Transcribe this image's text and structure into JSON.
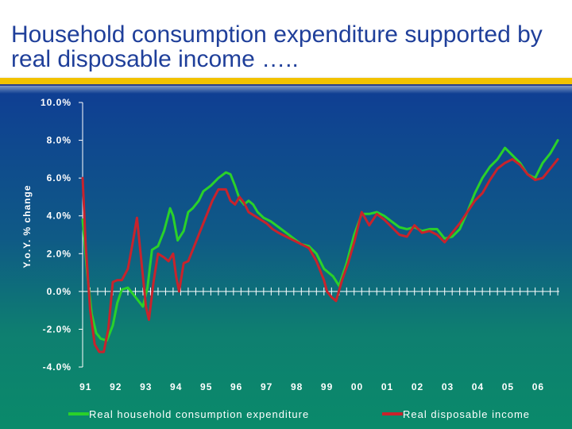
{
  "slide": {
    "title": "Household consumption expenditure supported by real disposable income …..",
    "accent_bar_color": "#f2c200"
  },
  "chart_data": {
    "type": "line",
    "ylabel": "Y.o.Y. % change",
    "xlabel": "",
    "ylim": [
      -4,
      10
    ],
    "xlim": [
      1991.0,
      2006.8
    ],
    "y_ticks": [
      10,
      8,
      6,
      4,
      2,
      0,
      -2,
      -4
    ],
    "y_tick_labels": [
      "10.0%",
      "8.0%",
      "6.0%",
      "4.0%",
      "2.0%",
      "0.0%",
      "-2.0%",
      "-4.0%"
    ],
    "x_tick_labels": [
      "91",
      "92",
      "93",
      "94",
      "95",
      "96",
      "97",
      "98",
      "99",
      "00",
      "01",
      "02",
      "03",
      "04",
      "05",
      "06"
    ],
    "x_tick_years": [
      1991,
      1992,
      1993,
      1994,
      1995,
      1996,
      1997,
      1998,
      1999,
      2000,
      2001,
      2002,
      2003,
      2004,
      2005,
      2006
    ],
    "legend": {
      "placement": "bottom"
    },
    "series": [
      {
        "name": "Real household consumption expenditure",
        "color": "#2ad12a",
        "x": [
          1991.0,
          1991.15,
          1991.3,
          1991.45,
          1991.6,
          1991.8,
          1992.0,
          1992.15,
          1992.3,
          1992.5,
          1992.75,
          1993.0,
          1993.15,
          1993.3,
          1993.5,
          1993.7,
          1993.9,
          1994.0,
          1994.15,
          1994.35,
          1994.5,
          1994.65,
          1994.85,
          1995.0,
          1995.25,
          1995.5,
          1995.75,
          1995.9,
          1996.05,
          1996.2,
          1996.35,
          1996.5,
          1996.65,
          1996.8,
          1997.0,
          1997.25,
          1997.5,
          1997.75,
          1998.0,
          1998.25,
          1998.5,
          1998.75,
          1999.0,
          1999.15,
          1999.3,
          1999.5,
          1999.75,
          2000.0,
          2000.25,
          2000.5,
          2000.75,
          2001.0,
          2001.25,
          2001.5,
          2001.75,
          2002.0,
          2002.25,
          2002.5,
          2002.75,
          2003.0,
          2003.25,
          2003.5,
          2003.75,
          2004.0,
          2004.25,
          2004.5,
          2004.75,
          2005.0,
          2005.25,
          2005.5,
          2005.75,
          2006.0,
          2006.25,
          2006.5,
          2006.75
        ],
        "values": [
          3.8,
          1.0,
          -1.2,
          -2.2,
          -2.5,
          -2.6,
          -1.8,
          -0.6,
          0.1,
          0.2,
          -0.3,
          -0.8,
          0.2,
          2.2,
          2.4,
          3.2,
          4.4,
          4.0,
          2.7,
          3.2,
          4.2,
          4.4,
          4.8,
          5.3,
          5.6,
          6.0,
          6.3,
          6.2,
          5.6,
          4.9,
          4.6,
          4.8,
          4.6,
          4.2,
          3.9,
          3.7,
          3.4,
          3.1,
          2.8,
          2.5,
          2.4,
          2.0,
          1.2,
          1.0,
          0.8,
          0.3,
          1.5,
          3.0,
          4.1,
          4.1,
          4.2,
          4.0,
          3.7,
          3.4,
          3.3,
          3.4,
          3.2,
          3.3,
          3.3,
          2.8,
          2.9,
          3.3,
          4.2,
          5.2,
          6.0,
          6.6,
          7.0,
          7.6,
          7.2,
          6.8,
          6.2,
          6.0,
          6.8,
          7.3,
          8.0
        ]
      },
      {
        "name": "Real disposable income",
        "color": "#c8232c",
        "x": [
          1991.0,
          1991.1,
          1991.25,
          1991.4,
          1991.55,
          1991.7,
          1991.85,
          1992.0,
          1992.15,
          1992.3,
          1992.5,
          1992.65,
          1992.8,
          1993.0,
          1993.1,
          1993.2,
          1993.35,
          1993.5,
          1993.7,
          1993.85,
          1994.0,
          1994.1,
          1994.2,
          1994.35,
          1994.5,
          1994.7,
          1994.9,
          1995.1,
          1995.3,
          1995.5,
          1995.75,
          1995.9,
          1996.05,
          1996.2,
          1996.35,
          1996.5,
          1996.7,
          1996.9,
          1997.1,
          1997.3,
          1997.5,
          1997.75,
          1998.0,
          1998.25,
          1998.5,
          1998.75,
          1999.0,
          1999.1,
          1999.25,
          1999.4,
          1999.6,
          1999.8,
          2000.0,
          2000.25,
          2000.5,
          2000.75,
          2001.0,
          2001.25,
          2001.5,
          2001.75,
          2002.0,
          2002.25,
          2002.5,
          2002.75,
          2003.0,
          2003.25,
          2003.5,
          2003.75,
          2004.0,
          2004.25,
          2004.5,
          2004.75,
          2005.0,
          2005.25,
          2005.5,
          2005.75,
          2006.0,
          2006.25,
          2006.5,
          2006.75
        ],
        "values": [
          6.0,
          2.5,
          -1.0,
          -2.8,
          -3.2,
          -3.2,
          -2.0,
          0.5,
          0.6,
          0.6,
          1.2,
          2.5,
          3.9,
          0.8,
          -0.8,
          -1.5,
          0.5,
          2.0,
          1.8,
          1.6,
          2.0,
          0.8,
          0.0,
          1.5,
          1.6,
          2.4,
          3.2,
          4.0,
          4.8,
          5.4,
          5.4,
          4.8,
          4.6,
          5.0,
          4.7,
          4.2,
          4.0,
          3.8,
          3.6,
          3.3,
          3.1,
          2.9,
          2.7,
          2.5,
          2.3,
          1.6,
          0.6,
          0.0,
          -0.3,
          -0.5,
          0.6,
          1.5,
          2.6,
          4.2,
          3.5,
          4.1,
          3.8,
          3.4,
          3.0,
          2.9,
          3.5,
          3.1,
          3.2,
          3.0,
          2.6,
          3.1,
          3.6,
          4.2,
          4.8,
          5.2,
          5.9,
          6.5,
          6.8,
          7.0,
          6.7,
          6.2,
          5.9,
          6.0,
          6.5,
          7.0
        ]
      }
    ]
  }
}
